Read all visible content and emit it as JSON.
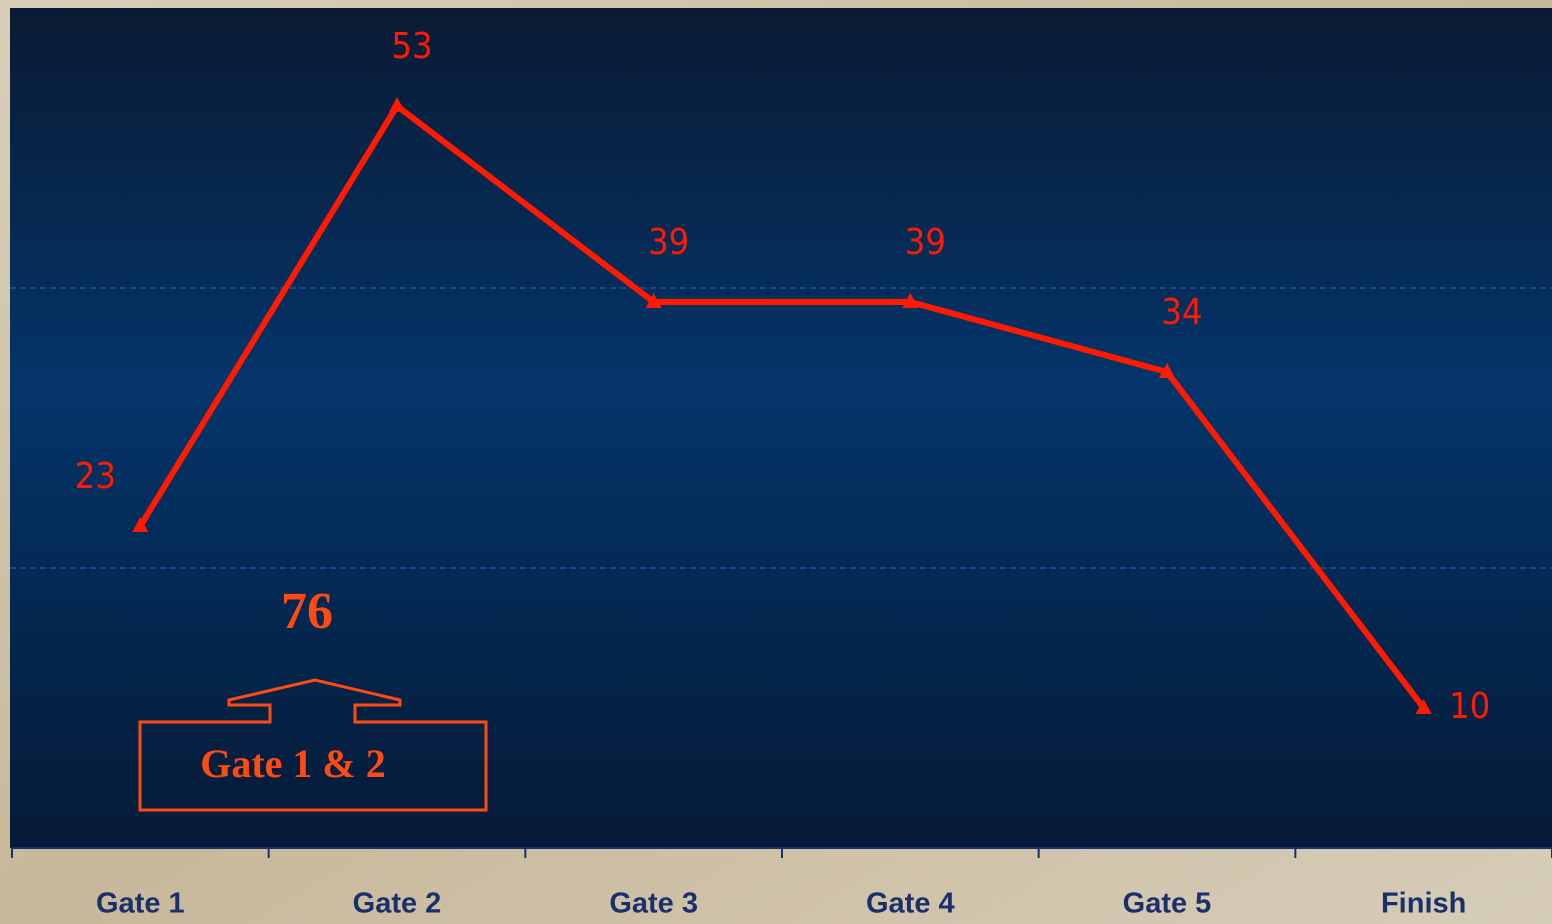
{
  "chart_data": {
    "type": "line",
    "categories": [
      "Gate 1",
      "Gate 2",
      "Gate 3",
      "Gate 4",
      "Gate 5",
      "Finish"
    ],
    "series": [
      {
        "color": "#ff1a00",
        "values": [
          23,
          53,
          39,
          39,
          34,
          10
        ]
      }
    ],
    "ylim": [
      0,
      60
    ],
    "ygrid": [
      20,
      40
    ],
    "annotation": {
      "value": 76,
      "label": "Gate 1 & 2",
      "color": "#ff4a12"
    }
  }
}
